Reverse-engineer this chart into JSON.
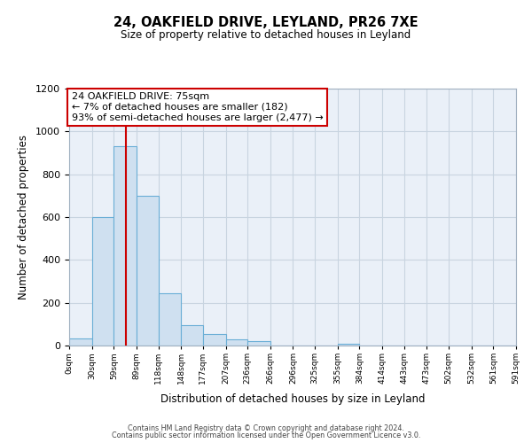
{
  "title": "24, OAKFIELD DRIVE, LEYLAND, PR26 7XE",
  "subtitle": "Size of property relative to detached houses in Leyland",
  "xlabel": "Distribution of detached houses by size in Leyland",
  "ylabel": "Number of detached properties",
  "bin_edges": [
    0,
    30,
    59,
    89,
    118,
    148,
    177,
    207,
    236,
    266,
    296,
    325,
    355,
    384,
    414,
    443,
    473,
    502,
    532,
    561,
    591
  ],
  "bar_heights": [
    35,
    600,
    930,
    700,
    245,
    95,
    55,
    30,
    20,
    0,
    0,
    0,
    10,
    0,
    0,
    0,
    0,
    0,
    0,
    0
  ],
  "bar_color": "#cfe0f0",
  "bar_edge_color": "#6aaed6",
  "bar_edge_width": 0.8,
  "red_line_x": 75,
  "red_line_color": "#cc0000",
  "annotation_title": "24 OAKFIELD DRIVE: 75sqm",
  "annotation_line1": "← 7% of detached houses are smaller (182)",
  "annotation_line2": "93% of semi-detached houses are larger (2,477) →",
  "annotation_box_color": "#ffffff",
  "annotation_border_color": "#cc0000",
  "ylim": [
    0,
    1200
  ],
  "yticks": [
    0,
    200,
    400,
    600,
    800,
    1000,
    1200
  ],
  "grid_color": "#c8d4e0",
  "bg_color": "#eaf0f8",
  "footer_line1": "Contains HM Land Registry data © Crown copyright and database right 2024.",
  "footer_line2": "Contains public sector information licensed under the Open Government Licence v3.0.",
  "tick_labels": [
    "0sqm",
    "30sqm",
    "59sqm",
    "89sqm",
    "118sqm",
    "148sqm",
    "177sqm",
    "207sqm",
    "236sqm",
    "266sqm",
    "296sqm",
    "325sqm",
    "355sqm",
    "384sqm",
    "414sqm",
    "443sqm",
    "473sqm",
    "502sqm",
    "532sqm",
    "561sqm",
    "591sqm"
  ]
}
